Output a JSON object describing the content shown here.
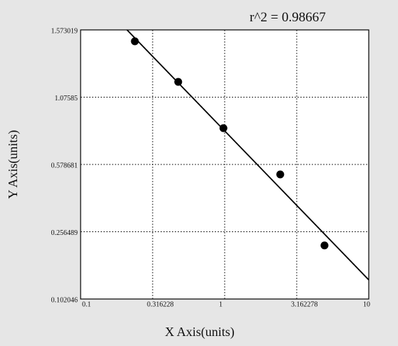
{
  "chart_data": {
    "type": "scatter",
    "annotation": "r^2  = 0.98667",
    "x_label": "X Axis(units)",
    "y_label": "Y Axis(units)",
    "xscale": "log",
    "grid": true,
    "color": "#000000",
    "xlim": [
      0.1,
      10
    ],
    "xticks": [
      0.1,
      0.316228,
      1,
      3.162278,
      10
    ],
    "ylim": [
      0.102046,
      1.573019
    ],
    "yticks": [
      0.102046,
      0.256489,
      0.578681,
      1.07585,
      1.573019
    ],
    "points": {
      "x": [
        0.238,
        0.476,
        0.98,
        2.43,
        4.93
      ],
      "y": [
        1.489,
        1.189,
        0.847,
        0.531,
        0.225
      ]
    },
    "fit_line": {
      "x": [
        0.21,
        10
      ],
      "y": [
        1.573019,
        0.146
      ]
    }
  }
}
